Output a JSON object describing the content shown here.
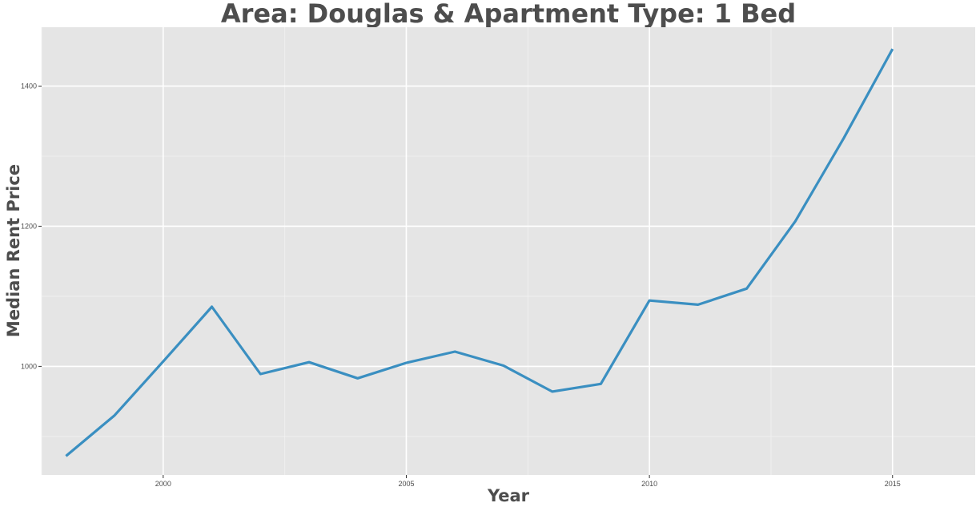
{
  "chart_data": {
    "type": "line",
    "title": "Area: Douglas & Apartment Type: 1 Bed",
    "xlabel": "Year",
    "ylabel": "Median Rent Price",
    "xlim": [
      1997.5,
      2016.7
    ],
    "ylim": [
      845,
      1484
    ],
    "x_ticks": [
      2000,
      2005,
      2010,
      2015
    ],
    "y_ticks": [
      1000,
      1200,
      1400
    ],
    "x_tick_labels": [
      "2000",
      "2005",
      "2010",
      "2015"
    ],
    "y_tick_labels": [
      "1000",
      "1200",
      "1400"
    ],
    "grid": true,
    "background": "#e5e5e5",
    "line_color": "#3a8fc1",
    "series": [
      {
        "x": [
          1998,
          1999,
          2000,
          2001,
          2002,
          2003,
          2004,
          2005,
          2006,
          2007,
          2008,
          2009,
          2010,
          2011,
          2012,
          2013,
          2014,
          2015
        ],
        "values": [
          872,
          930,
          1007,
          1085,
          989,
          1006,
          983,
          1005,
          1021,
          1001,
          964,
          975,
          1094,
          1088,
          1111,
          1207,
          1326,
          1453
        ]
      }
    ]
  }
}
